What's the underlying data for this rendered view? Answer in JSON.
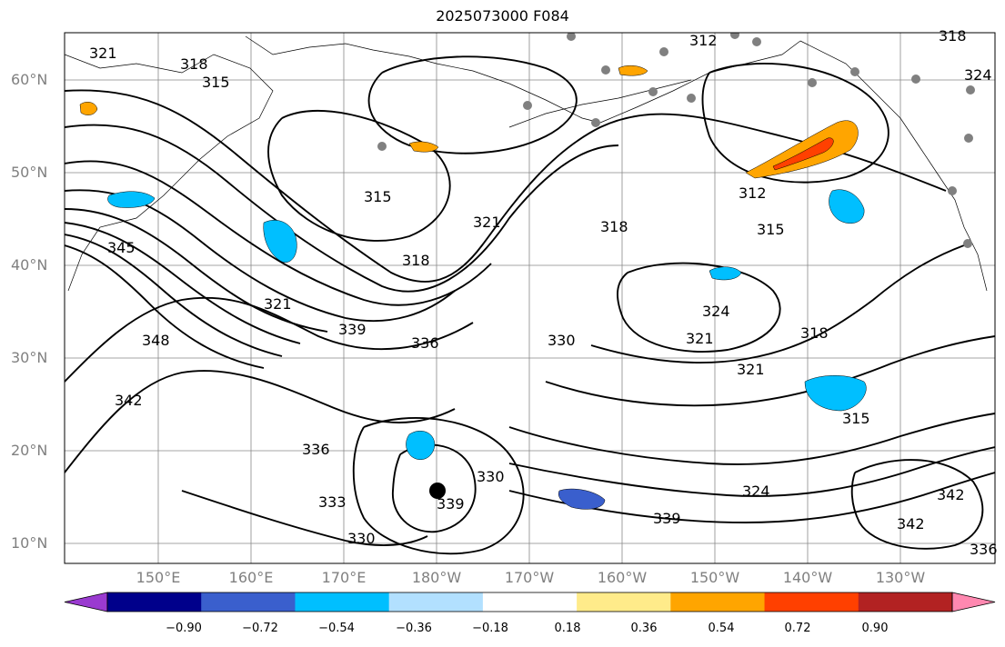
{
  "title": "2025073000 F084",
  "lat_labels": [
    "60°N",
    "50°N",
    "40°N",
    "30°N",
    "20°N",
    "10°N"
  ],
  "lon_labels": [
    "150°E",
    "160°E",
    "170°E",
    "180°W",
    "170°W",
    "160°W",
    "150°W",
    "140°W",
    "130°W"
  ],
  "contour_labels": [
    "321",
    "318",
    "315",
    "312",
    "318",
    "324",
    "315",
    "321",
    "345",
    "318",
    "321",
    "318",
    "312",
    "315",
    "324",
    "321",
    "318",
    "321",
    "315",
    "348",
    "339",
    "336",
    "330",
    "342",
    "336",
    "339",
    "333",
    "330",
    "330",
    "342",
    "324",
    "339",
    "342",
    "336"
  ],
  "colorbar": {
    "ticks": [
      "−0.90",
      "−0.72",
      "−0.54",
      "−0.36",
      "−0.18",
      "0.18",
      "0.36",
      "0.54",
      "0.72",
      "0.90"
    ],
    "colors": [
      "#9a3ad0",
      "#00008b",
      "#3a5fcd",
      "#00bfff",
      "#b2e0ff",
      "#ffffff",
      "#ffeb8a",
      "#ffa500",
      "#ff4000",
      "#b22222",
      "#ff88b0"
    ]
  },
  "marker_colors": {
    "station": "#808080",
    "center": "#000000"
  }
}
